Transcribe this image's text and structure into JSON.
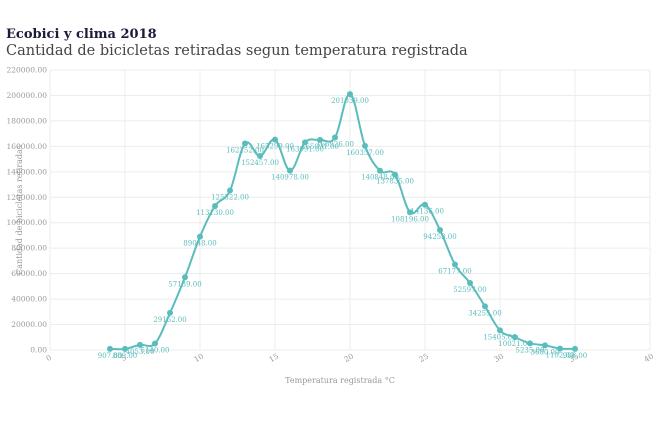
{
  "chart_data": {
    "type": "line",
    "title": "Ecobici y clima 2018",
    "subtitle": "Cantidad de bicicletas retiradas segun temperatura registrada",
    "xlabel": "Temperatura registrada °C",
    "ylabel": "Cantidad de bicicletas retiradas",
    "xlim": [
      0,
      40
    ],
    "ylim": [
      0,
      220000
    ],
    "xticks": [
      "0",
      "5",
      "10",
      "15",
      "20",
      "25",
      "30",
      "35",
      "40"
    ],
    "yticks": [
      "0.00",
      "20000.00",
      "40000.00",
      "60000.00",
      "80000.00",
      "100000.00",
      "120000.00",
      "140000.00",
      "160000.00",
      "180000.00",
      "200000.00",
      "220000.00"
    ],
    "grid": true,
    "line_color": "#5bbcbc",
    "points": [
      {
        "x": 4,
        "y": 907,
        "label": "907.00"
      },
      {
        "x": 5,
        "y": 839,
        "label": "839.00"
      },
      {
        "x": 6,
        "y": 4053,
        "label": "4053.00"
      },
      {
        "x": 7,
        "y": 5140,
        "label": "5140.00"
      },
      {
        "x": 8,
        "y": 29162,
        "label": "29162.00"
      },
      {
        "x": 9,
        "y": 57139,
        "label": "57139.00"
      },
      {
        "x": 10,
        "y": 89048,
        "label": "89048.00"
      },
      {
        "x": 11,
        "y": 113130,
        "label": "113130.00"
      },
      {
        "x": 12,
        "y": 125322,
        "label": "125322.00"
      },
      {
        "x": 13,
        "y": 162252,
        "label": "162252.00"
      },
      {
        "x": 14,
        "y": 152457,
        "label": "152457.00"
      },
      {
        "x": 15,
        "y": 165299,
        "label": "165299.00"
      },
      {
        "x": 16,
        "y": 140978,
        "label": "140978.00"
      },
      {
        "x": 17,
        "y": 163091,
        "label": "163091.00"
      },
      {
        "x": 18,
        "y": 165091,
        "label": "165091.00"
      },
      {
        "x": 19,
        "y": 166926,
        "label": "166926.00"
      },
      {
        "x": 20,
        "y": 201039,
        "label": "201039.00"
      },
      {
        "x": 21,
        "y": 160357,
        "label": "160357.00"
      },
      {
        "x": 22,
        "y": 140848,
        "label": "140848.00"
      },
      {
        "x": 23,
        "y": 137835,
        "label": "137835.00"
      },
      {
        "x": 24,
        "y": 108196,
        "label": "108196.00"
      },
      {
        "x": 25,
        "y": 114136,
        "label": "114136.00"
      },
      {
        "x": 26,
        "y": 94253,
        "label": "94253.00"
      },
      {
        "x": 27,
        "y": 67177,
        "label": "67177.00"
      },
      {
        "x": 28,
        "y": 52597,
        "label": "52597.00"
      },
      {
        "x": 29,
        "y": 34255,
        "label": "34255.00"
      },
      {
        "x": 30,
        "y": 15405,
        "label": "15405.00"
      },
      {
        "x": 31,
        "y": 10021,
        "label": "10021.00"
      },
      {
        "x": 32,
        "y": 5235,
        "label": "5235.00"
      },
      {
        "x": 33,
        "y": 3680,
        "label": "3680.00"
      },
      {
        "x": 34,
        "y": 1102,
        "label": "1102.00"
      },
      {
        "x": 35,
        "y": 906,
        "label": "906.00"
      }
    ]
  }
}
